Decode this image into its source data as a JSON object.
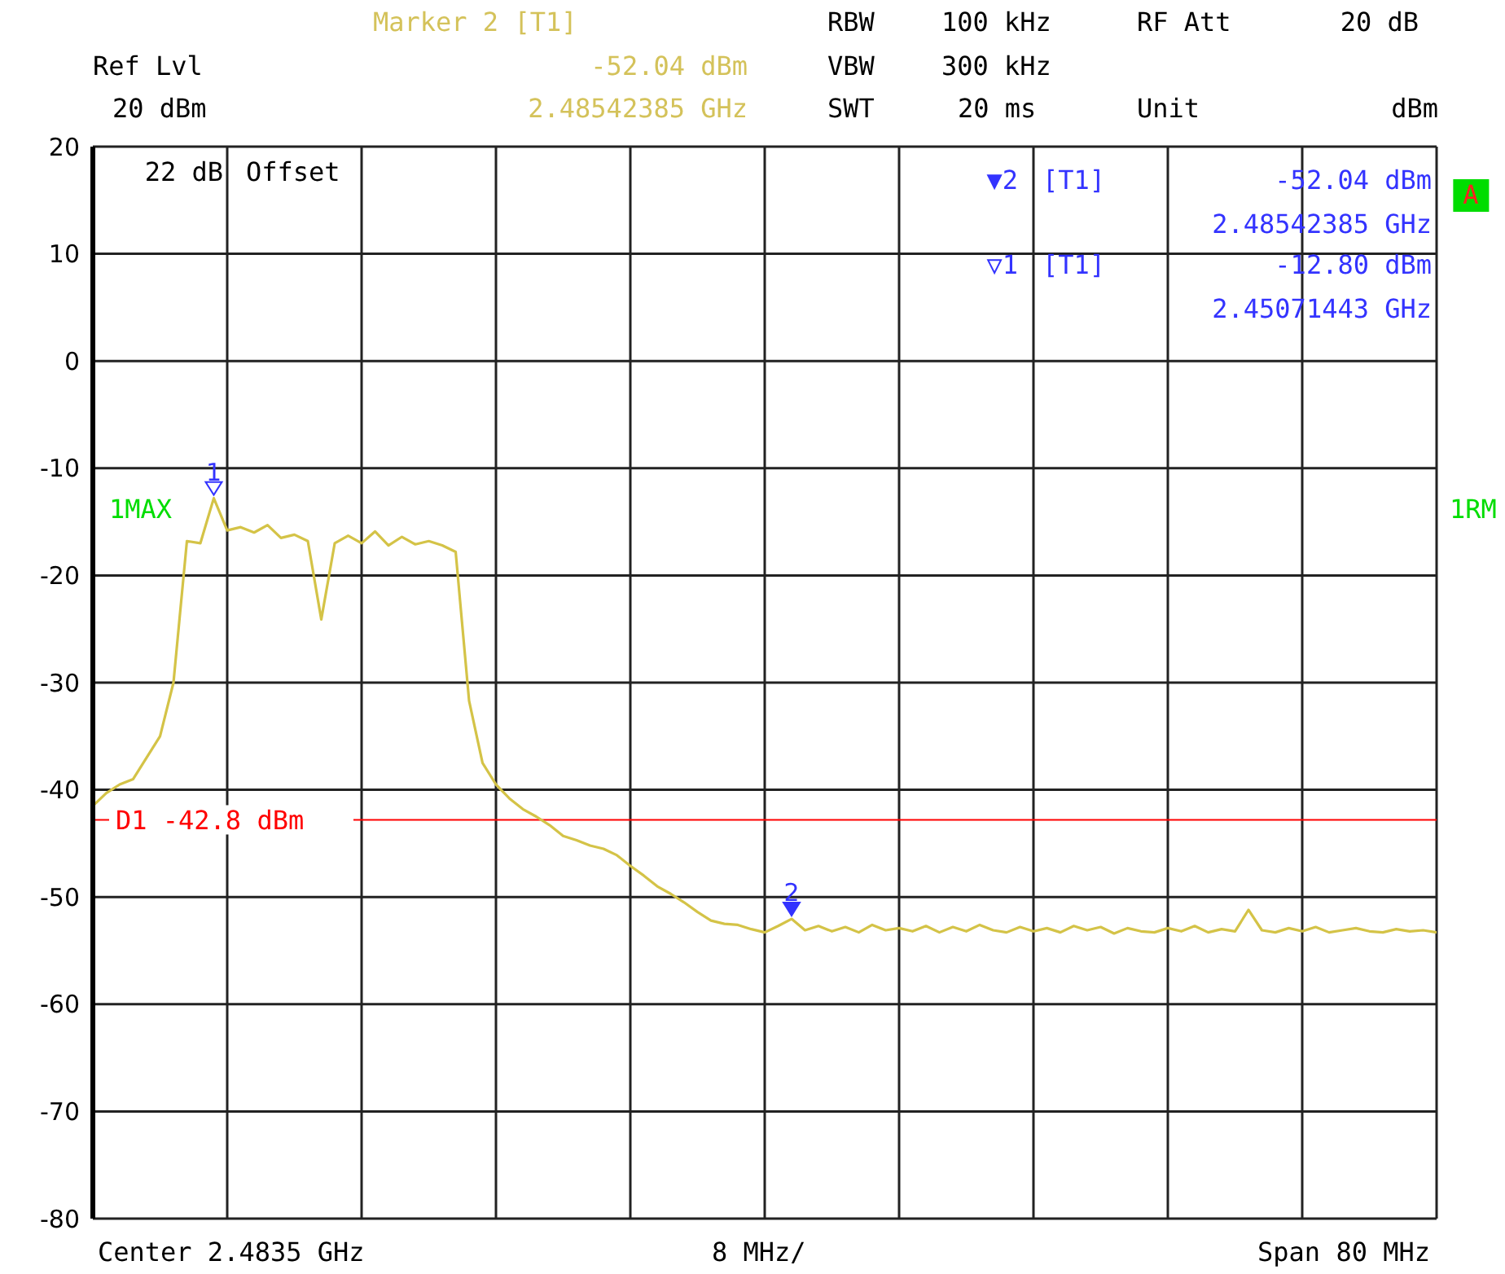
{
  "chart_data": {
    "type": "line",
    "categories": [
      null,
      null,
      null,
      null,
      null,
      null,
      null,
      null,
      null,
      null,
      null,
      null,
      null,
      null,
      null,
      null,
      null,
      null,
      null,
      null,
      null,
      null,
      null,
      null,
      null,
      null,
      null,
      null,
      null,
      null,
      null,
      null,
      null,
      null,
      null,
      null,
      null,
      null,
      null,
      null,
      null,
      null,
      null,
      null,
      null,
      null,
      null,
      null,
      null,
      null,
      null,
      null,
      null,
      null,
      null,
      null,
      null,
      null,
      null,
      null,
      null,
      null,
      null,
      null,
      null,
      null,
      null,
      null,
      null,
      null,
      null,
      null,
      null,
      null,
      null,
      null,
      null,
      null,
      null,
      null,
      null,
      null,
      null,
      null,
      null,
      null,
      null,
      null,
      null,
      null,
      null,
      null,
      null,
      null,
      null,
      null,
      null,
      null,
      null,
      null,
      null
    ],
    "series": [
      {
        "color": "#d4c347",
        "values": [
          -41.5,
          -40.3,
          -39.5,
          -39,
          -37,
          -35,
          -30,
          -16.8,
          -17,
          -12.8,
          -15.8,
          -15.5,
          -16,
          -15.3,
          -16.5,
          -16.2,
          -16.8,
          -24.1,
          -17,
          -16.3,
          -17,
          -15.9,
          -17.2,
          -16.4,
          -17.1,
          -16.8,
          -17.2,
          -17.8,
          -31.7,
          -37.5,
          -39.5,
          -40.8,
          -41.8,
          -42.5,
          -43.3,
          -44.3,
          -44.7,
          -45.2,
          -45.5,
          -46.1,
          -47.1,
          -48,
          -49,
          -49.7,
          -50.5,
          -51.4,
          -52.2,
          -52.5,
          -52.6,
          -53,
          -53.3,
          -52.7,
          -52.04,
          -53.1,
          -52.7,
          -53.2,
          -52.8,
          -53.3,
          -52.6,
          -53.1,
          -52.9,
          -53.2,
          -52.7,
          -53.3,
          -52.8,
          -53.2,
          -52.6,
          -53.1,
          -53.3,
          -52.8,
          -53.2,
          -52.9,
          -53.3,
          -52.7,
          -53.1,
          -52.8,
          -53.4,
          -52.9,
          -53.2,
          -53.3,
          -52.9,
          -53.2,
          -52.7,
          -53.3,
          -53,
          -53.2,
          -51.2,
          -53.1,
          -53.3,
          -52.9,
          -53.2,
          -52.8,
          -53.3,
          -53.1,
          -52.9,
          -53.2,
          -53.3,
          -53,
          -53.2,
          -53.1,
          -53.3
        ]
      }
    ],
    "ylim": [
      -80,
      20
    ],
    "yticks": [
      -80,
      -70,
      -60,
      -50,
      -40,
      -30,
      -20,
      -10,
      0,
      10,
      20
    ],
    "grid": true,
    "marker": "none",
    "line_style": "solid",
    "ref_lines": [
      {
        "axis": "y",
        "value": -42.8,
        "label": "D1 -42.8 dBm",
        "color": "#ff0000"
      }
    ],
    "annotations": [
      "Marker 2 [T1]",
      "-52.04 dBm",
      "2.48542385 GHz",
      "Ref Lvl",
      "20 dBm",
      "RBW",
      "100 kHz",
      "VBW",
      "300 kHz",
      "SWT",
      "20 ms",
      "RF Att",
      "20 dB",
      "Unit",
      "dBm",
      "22 dB",
      "Offset",
      "▼2",
      "[T1]",
      "-52.04 dBm",
      "2.48542385 GHz",
      "▽1",
      "[T1]",
      "-12.80 dBm",
      "2.45071443 GHz",
      "A",
      "1MAX",
      "1RM",
      "Center 2.4835 GHz",
      "8 MHz/",
      "Span 80 MHz",
      {
        "text": "1",
        "y": -12.8
      },
      {
        "text": "2",
        "y": -52.04
      }
    ]
  }
}
